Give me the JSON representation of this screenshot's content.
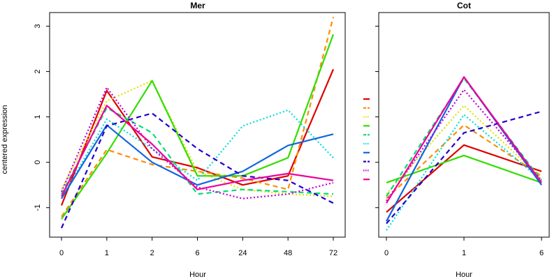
{
  "chart_data": [
    {
      "type": "line",
      "title": "Mer",
      "xlabel": "Hour",
      "ylabel": "centered expression",
      "categories": [
        "0",
        "1",
        "2",
        "6",
        "24",
        "48",
        "72"
      ],
      "yticks": [
        -1,
        0,
        1,
        2,
        3
      ],
      "ylim": [
        -1.65,
        3.3
      ],
      "grid": false,
      "series": [
        {
          "color": "#dd0000",
          "dash": "solid",
          "values": [
            -0.95,
            1.58,
            0.12,
            -0.12,
            -0.5,
            -0.3,
            2.05
          ]
        },
        {
          "color": "#ff8c00",
          "dash": "dashed",
          "values": [
            -1.2,
            0.28,
            -0.05,
            -0.2,
            -0.35,
            -0.6,
            3.2
          ]
        },
        {
          "color": "#e0e000",
          "dash": "dotted",
          "values": [
            -0.6,
            1.35,
            1.8,
            -0.2,
            -0.6,
            -0.7,
            -0.75
          ]
        },
        {
          "color": "#33dd00",
          "dash": "solid",
          "values": [
            -1.25,
            0.2,
            1.8,
            -0.3,
            -0.3,
            0.1,
            2.82
          ]
        },
        {
          "color": "#00dd77",
          "dash": "dashed",
          "values": [
            -0.7,
            1.2,
            0.65,
            -0.7,
            -0.6,
            -0.65,
            -0.7
          ]
        },
        {
          "color": "#00dddd",
          "dash": "dotted",
          "values": [
            -0.8,
            0.95,
            0.3,
            -0.4,
            0.8,
            1.15,
            0.1
          ]
        },
        {
          "color": "#1166dd",
          "dash": "solid",
          "values": [
            -0.8,
            0.82,
            0.0,
            -0.5,
            -0.2,
            0.37,
            0.62
          ]
        },
        {
          "color": "#2200cc",
          "dash": "dashed",
          "values": [
            -1.45,
            0.8,
            1.08,
            0.3,
            -0.3,
            -0.4,
            -0.9
          ]
        },
        {
          "color": "#bb00dd",
          "dash": "dotted",
          "values": [
            -0.65,
            1.65,
            0.3,
            -0.55,
            -0.8,
            -0.7,
            -0.45
          ]
        },
        {
          "color": "#ee0099",
          "dash": "solid",
          "values": [
            -0.75,
            1.25,
            0.4,
            -0.6,
            -0.4,
            -0.25,
            -0.4
          ]
        }
      ]
    },
    {
      "type": "line",
      "title": "Cot",
      "xlabel": "Hour",
      "ylabel": "",
      "categories": [
        "0",
        "1",
        "6"
      ],
      "yticks": [
        -1,
        0,
        1,
        2,
        3
      ],
      "ylim": [
        -1.65,
        3.3
      ],
      "grid": false,
      "series": [
        {
          "color": "#dd0000",
          "dash": "solid",
          "values": [
            -1.1,
            0.38,
            -0.2
          ]
        },
        {
          "color": "#ff8c00",
          "dash": "dashed",
          "values": [
            -0.8,
            0.82,
            -0.3
          ]
        },
        {
          "color": "#e0e000",
          "dash": "dotted",
          "values": [
            -0.7,
            1.25,
            -0.35
          ]
        },
        {
          "color": "#33dd00",
          "dash": "solid",
          "values": [
            -0.45,
            0.15,
            -0.45
          ]
        },
        {
          "color": "#00dd77",
          "dash": "dashed",
          "values": [
            -0.75,
            1.85,
            -0.4
          ]
        },
        {
          "color": "#00dddd",
          "dash": "dotted",
          "values": [
            -1.5,
            1.05,
            -0.4
          ]
        },
        {
          "color": "#1166dd",
          "dash": "solid",
          "values": [
            -1.3,
            1.88,
            -0.5
          ]
        },
        {
          "color": "#2200cc",
          "dash": "dashed",
          "values": [
            -1.35,
            0.65,
            1.12
          ]
        },
        {
          "color": "#bb00dd",
          "dash": "dotted",
          "values": [
            -0.85,
            1.6,
            -0.4
          ]
        },
        {
          "color": "#ee0099",
          "dash": "solid",
          "values": [
            -0.9,
            1.88,
            -0.45
          ]
        }
      ]
    }
  ]
}
